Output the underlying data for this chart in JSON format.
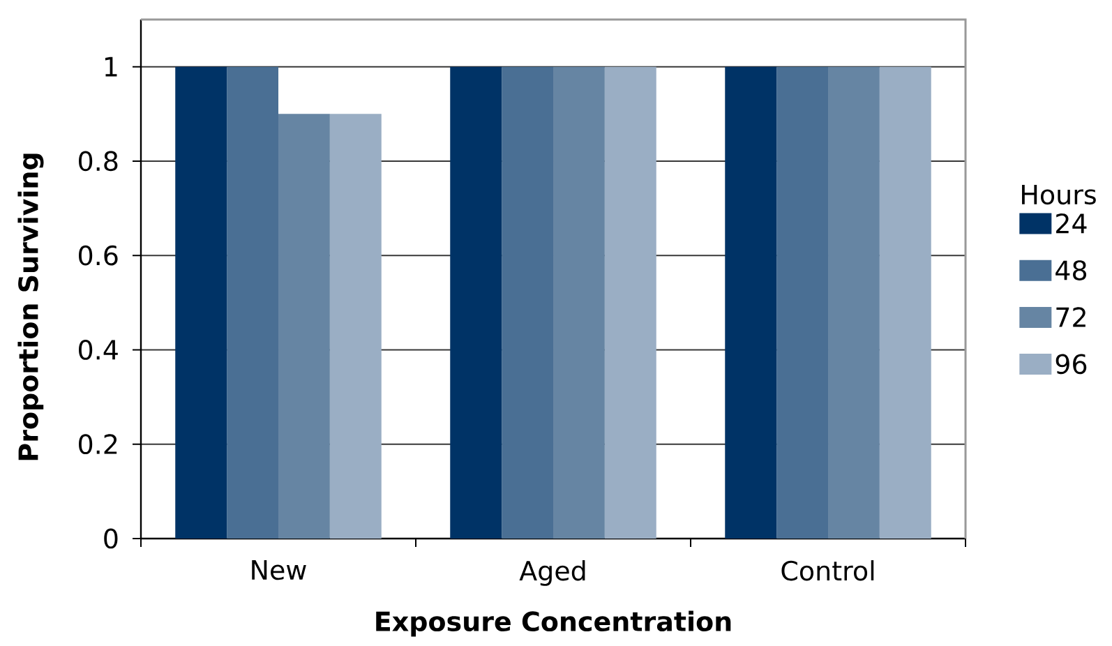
{
  "chart_data": {
    "type": "bar",
    "xlabel": "Exposure Concentration",
    "ylabel": "Proportion Surviving",
    "legend_title": "Hours",
    "categories": [
      "New",
      "Aged",
      "Control"
    ],
    "series": [
      {
        "name": "24",
        "color": "#003366",
        "values": [
          1,
          1,
          1
        ]
      },
      {
        "name": "48",
        "color": "#4a6f94",
        "values": [
          1,
          1,
          1
        ]
      },
      {
        "name": "72",
        "color": "#6685a3",
        "values": [
          0.9,
          1,
          1
        ]
      },
      {
        "name": "96",
        "color": "#9aaec4",
        "values": [
          0.9,
          1,
          1
        ]
      }
    ],
    "ylim": [
      0,
      1.1
    ],
    "yticks": [
      0,
      0.2,
      0.4,
      0.6,
      0.8,
      1
    ],
    "grid": "y",
    "legend": "right"
  }
}
